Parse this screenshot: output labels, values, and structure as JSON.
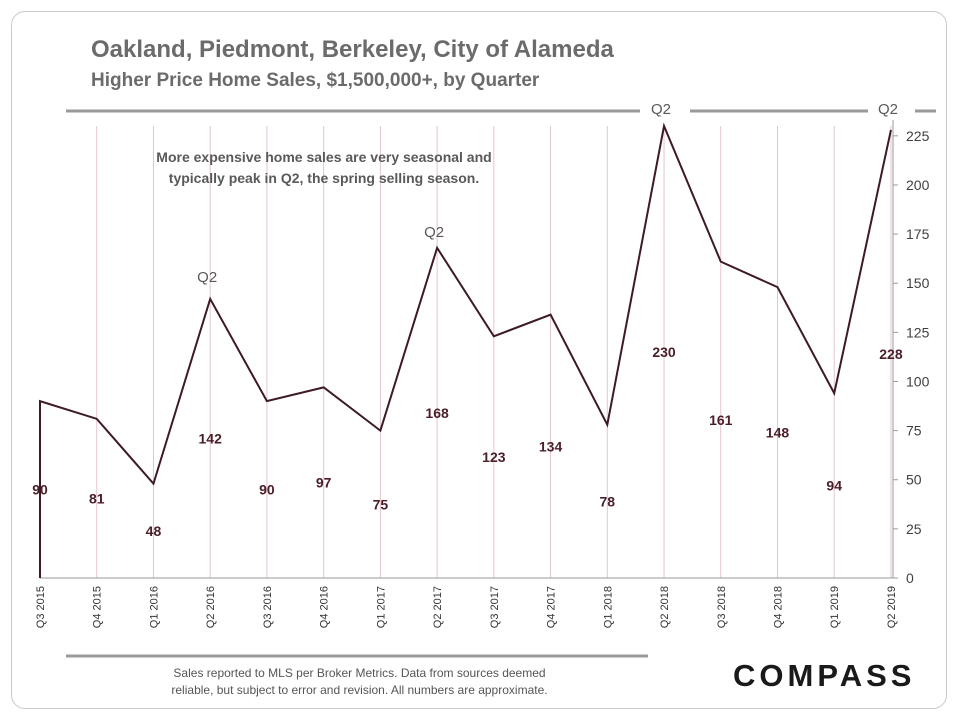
{
  "chart_data": {
    "type": "line",
    "title": "Oakland, Piedmont, Berkeley, City of Alameda",
    "subtitle": "Higher Price Home Sales, $1,500,000+, by Quarter",
    "categories": [
      "Q3 2015",
      "Q4 2015",
      "Q1 2016",
      "Q2 2016",
      "Q3 2016",
      "Q4 2016",
      "Q1 2017",
      "Q2 2017",
      "Q3 2017",
      "Q4 2017",
      "Q1 2018",
      "Q2 2018",
      "Q3 2018",
      "Q4 2018",
      "Q1 2019",
      "Q2 2019"
    ],
    "series": [
      {
        "values": [
          90,
          81,
          48,
          142,
          90,
          97,
          75,
          168,
          123,
          134,
          78,
          230,
          161,
          148,
          94,
          228
        ]
      }
    ],
    "data_labels": [
      "90",
      "81",
      "48",
      "142",
      "90",
      "97",
      "75",
      "168",
      "123",
      "134",
      "78",
      "230",
      "161",
      "148",
      "94",
      "228"
    ],
    "y_axis": {
      "position": "right",
      "ylim": [
        0,
        230
      ],
      "ticks": [
        0,
        25,
        50,
        75,
        100,
        125,
        150,
        175,
        200,
        225
      ],
      "tick_labels": [
        "0",
        "25",
        "50",
        "75",
        "100",
        "125",
        "150",
        "175",
        "200",
        "225"
      ]
    },
    "point_annotations": [
      {
        "category": "Q2 2016",
        "text": "Q2"
      },
      {
        "category": "Q2 2017",
        "text": "Q2"
      },
      {
        "category": "Q2 2018",
        "text": "Q2"
      },
      {
        "category": "Q2 2019",
        "text": "Q2"
      }
    ],
    "annotation_text": [
      "More expensive home sales are very seasonal and",
      "typically peak in Q2, the spring selling season."
    ],
    "grid": {
      "vertical": true,
      "horizontal": false
    },
    "legend": "none",
    "colors": {
      "line": "#3d1a24",
      "gridline": "#e3c6cc",
      "label": "#4a1e29",
      "text": "#595959"
    }
  },
  "footnote": {
    "line1": "Sales reported to MLS per Broker Metrics. Data from sources  deemed",
    "line2": "reliable, but subject to error and revision. All numbers are approximate."
  },
  "brand": {
    "logo_text": "COMPASS"
  }
}
